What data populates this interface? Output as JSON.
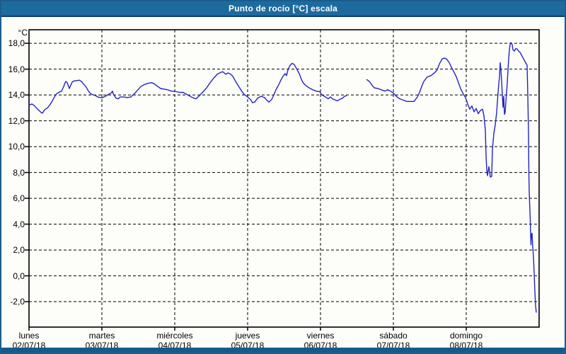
{
  "window": {
    "title": "Punto de rocío [°C] escala"
  },
  "frame": {
    "titlebar_color": "#1d6a9e",
    "titlebar_text_color": "#ffffff",
    "border_color": "#1a5e8e",
    "bottombar_color": "#17598a",
    "plot_background": "#fdfdfa"
  },
  "chart_data": {
    "type": "line",
    "title": "Punto de rocío [°C] escala",
    "unit_label": "°C",
    "line_color": "#2323c8",
    "grid": "dashed-black",
    "legend": "none",
    "x_axis": {
      "range_days": [
        0,
        7
      ],
      "days": [
        {
          "name": "lunes",
          "date": "02/07/18"
        },
        {
          "name": "martes",
          "date": "03/07/18"
        },
        {
          "name": "miércoles",
          "date": "04/07/18"
        },
        {
          "name": "jueves",
          "date": "05/07/18"
        },
        {
          "name": "viernes",
          "date": "06/07/18"
        },
        {
          "name": "sábado",
          "date": "07/07/18"
        },
        {
          "name": "domingo",
          "date": "08/07/18"
        }
      ]
    },
    "y_axis": {
      "range": [
        -3.97,
        19.05
      ],
      "ticks": [
        {
          "value": 18,
          "label": "18,0"
        },
        {
          "value": 16,
          "label": "16,0"
        },
        {
          "value": 14,
          "label": "14,0"
        },
        {
          "value": 12,
          "label": "12,0"
        },
        {
          "value": 10,
          "label": "10,0"
        },
        {
          "value": 8,
          "label": "8,0"
        },
        {
          "value": 6,
          "label": "6,0"
        },
        {
          "value": 4,
          "label": "4,0"
        },
        {
          "value": 2,
          "label": "2,0"
        },
        {
          "value": 0,
          "label": "0,0"
        },
        {
          "value": -2,
          "label": "-2,0"
        }
      ]
    },
    "series": [
      {
        "name": "Punto de rocío",
        "x_unit": "days since lunes 02/07/18 00:00",
        "segments": [
          [
            [
              0,
              13.2
            ],
            [
              0.039,
              13.3
            ],
            [
              0.068,
              13.2
            ],
            [
              0.117,
              12.9
            ],
            [
              0.165,
              12.65
            ],
            [
              0.184,
              12.6
            ],
            [
              0.214,
              12.85
            ],
            [
              0.252,
              13.0
            ],
            [
              0.282,
              13.2
            ],
            [
              0.311,
              13.45
            ],
            [
              0.35,
              13.85
            ],
            [
              0.379,
              14.1
            ],
            [
              0.408,
              14.2
            ],
            [
              0.447,
              14.3
            ],
            [
              0.476,
              14.65
            ],
            [
              0.495,
              14.95
            ],
            [
              0.505,
              15.05
            ],
            [
              0.524,
              14.95
            ],
            [
              0.544,
              14.65
            ],
            [
              0.553,
              14.5
            ],
            [
              0.573,
              14.75
            ],
            [
              0.592,
              15.0
            ],
            [
              0.621,
              15.1
            ],
            [
              0.65,
              15.1
            ],
            [
              0.689,
              15.15
            ],
            [
              0.718,
              15.05
            ],
            [
              0.748,
              14.85
            ],
            [
              0.786,
              14.6
            ],
            [
              0.816,
              14.3
            ],
            [
              0.845,
              14.1
            ],
            [
              0.883,
              14.0
            ],
            [
              0.913,
              13.95
            ],
            [
              0.942,
              13.85
            ],
            [
              0.981,
              13.8
            ],
            [
              1.01,
              13.8
            ],
            [
              1.049,
              13.9
            ],
            [
              1.078,
              14.0
            ],
            [
              1.126,
              14.15
            ],
            [
              1.146,
              14.3
            ],
            [
              1.155,
              14.1
            ],
            [
              1.194,
              13.75
            ],
            [
              1.223,
              13.7
            ],
            [
              1.252,
              13.85
            ],
            [
              1.301,
              13.85
            ],
            [
              1.35,
              13.8
            ],
            [
              1.398,
              13.85
            ],
            [
              1.447,
              14.1
            ],
            [
              1.495,
              14.4
            ],
            [
              1.534,
              14.65
            ],
            [
              1.583,
              14.8
            ],
            [
              1.631,
              14.9
            ],
            [
              1.68,
              14.95
            ],
            [
              1.709,
              14.9
            ],
            [
              1.757,
              14.7
            ],
            [
              1.806,
              14.5
            ],
            [
              1.854,
              14.45
            ],
            [
              1.903,
              14.4
            ],
            [
              1.951,
              14.3
            ],
            [
              2.0,
              14.28
            ],
            [
              2.068,
              14.2
            ],
            [
              2.117,
              14.2
            ],
            [
              2.146,
              14.1
            ],
            [
              2.194,
              13.95
            ],
            [
              2.243,
              13.8
            ],
            [
              2.291,
              13.7
            ],
            [
              2.34,
              13.95
            ],
            [
              2.388,
              14.25
            ],
            [
              2.437,
              14.55
            ],
            [
              2.485,
              14.95
            ],
            [
              2.534,
              15.3
            ],
            [
              2.583,
              15.6
            ],
            [
              2.631,
              15.75
            ],
            [
              2.66,
              15.8
            ],
            [
              2.699,
              15.6
            ],
            [
              2.728,
              15.7
            ],
            [
              2.757,
              15.65
            ],
            [
              2.796,
              15.45
            ],
            [
              2.835,
              15.05
            ],
            [
              2.874,
              14.7
            ],
            [
              2.913,
              14.35
            ],
            [
              2.951,
              14.05
            ],
            [
              3.0,
              13.85
            ],
            [
              3.039,
              13.65
            ],
            [
              3.068,
              13.4
            ],
            [
              3.097,
              13.45
            ],
            [
              3.136,
              13.75
            ],
            [
              3.184,
              13.9
            ],
            [
              3.233,
              13.8
            ],
            [
              3.262,
              13.6
            ],
            [
              3.291,
              13.45
            ],
            [
              3.33,
              13.65
            ],
            [
              3.359,
              14.0
            ],
            [
              3.388,
              14.4
            ],
            [
              3.427,
              14.8
            ],
            [
              3.456,
              15.15
            ],
            [
              3.485,
              15.45
            ],
            [
              3.515,
              15.65
            ],
            [
              3.534,
              15.5
            ],
            [
              3.553,
              15.95
            ],
            [
              3.583,
              16.3
            ],
            [
              3.612,
              16.45
            ],
            [
              3.641,
              16.35
            ],
            [
              3.67,
              16.05
            ],
            [
              3.709,
              15.65
            ],
            [
              3.738,
              15.2
            ],
            [
              3.767,
              14.9
            ],
            [
              3.806,
              14.7
            ],
            [
              3.845,
              14.55
            ],
            [
              3.893,
              14.4
            ],
            [
              3.942,
              14.3
            ],
            [
              3.99,
              14.25
            ],
            [
              4.019,
              14.0
            ],
            [
              4.068,
              13.85
            ],
            [
              4.107,
              13.7
            ],
            [
              4.136,
              13.85
            ],
            [
              4.165,
              13.7
            ],
            [
              4.204,
              13.6
            ],
            [
              4.233,
              13.55
            ],
            [
              4.262,
              13.65
            ],
            [
              4.301,
              13.75
            ],
            [
              4.33,
              13.9
            ],
            [
              4.359,
              13.95
            ]
          ],
          [
            [
              4.631,
              15.2
            ],
            [
              4.67,
              15.05
            ],
            [
              4.709,
              14.75
            ],
            [
              4.738,
              14.55
            ],
            [
              4.786,
              14.5
            ],
            [
              4.835,
              14.4
            ],
            [
              4.883,
              14.3
            ],
            [
              4.922,
              14.4
            ],
            [
              4.961,
              14.3
            ],
            [
              5.01,
              14.1
            ],
            [
              5.039,
              13.9
            ],
            [
              5.087,
              13.7
            ],
            [
              5.136,
              13.6
            ],
            [
              5.184,
              13.5
            ],
            [
              5.233,
              13.5
            ],
            [
              5.282,
              13.5
            ],
            [
              5.33,
              13.85
            ],
            [
              5.359,
              14.2
            ],
            [
              5.388,
              14.65
            ],
            [
              5.417,
              15.05
            ],
            [
              5.466,
              15.4
            ],
            [
              5.515,
              15.5
            ],
            [
              5.563,
              15.7
            ],
            [
              5.602,
              15.95
            ],
            [
              5.631,
              16.4
            ],
            [
              5.67,
              16.8
            ],
            [
              5.699,
              16.85
            ],
            [
              5.728,
              16.8
            ],
            [
              5.767,
              16.5
            ],
            [
              5.796,
              16.15
            ],
            [
              5.825,
              15.85
            ],
            [
              5.864,
              15.4
            ],
            [
              5.893,
              14.95
            ],
            [
              5.922,
              14.5
            ],
            [
              5.961,
              14.05
            ],
            [
              5.99,
              13.8
            ],
            [
              6.019,
              13.3
            ],
            [
              6.049,
              12.9
            ],
            [
              6.078,
              13.15
            ],
            [
              6.107,
              12.7
            ],
            [
              6.136,
              12.95
            ],
            [
              6.165,
              12.55
            ],
            [
              6.194,
              12.8
            ],
            [
              6.223,
              12.9
            ],
            [
              6.243,
              12.4
            ],
            [
              6.262,
              11.3
            ],
            [
              6.272,
              9.3
            ],
            [
              6.282,
              8.2
            ],
            [
              6.291,
              7.75
            ],
            [
              6.311,
              8.45
            ],
            [
              6.33,
              7.65
            ],
            [
              6.35,
              7.7
            ],
            [
              6.359,
              9.8
            ],
            [
              6.379,
              11.0
            ],
            [
              6.398,
              11.7
            ],
            [
              6.417,
              12.65
            ],
            [
              6.427,
              13.45
            ],
            [
              6.437,
              14.2
            ],
            [
              6.447,
              14.85
            ],
            [
              6.456,
              15.4
            ],
            [
              6.466,
              16.5
            ],
            [
              6.476,
              15.9
            ],
            [
              6.485,
              15.1
            ],
            [
              6.495,
              14.0
            ],
            [
              6.505,
              13.05
            ],
            [
              6.515,
              13.9
            ],
            [
              6.524,
              12.5
            ],
            [
              6.534,
              12.65
            ],
            [
              6.544,
              13.5
            ],
            [
              6.553,
              14.2
            ],
            [
              6.563,
              14.95
            ],
            [
              6.573,
              15.9
            ],
            [
              6.583,
              16.85
            ],
            [
              6.592,
              17.5
            ],
            [
              6.602,
              17.9
            ],
            [
              6.612,
              18.05
            ],
            [
              6.631,
              17.9
            ],
            [
              6.641,
              17.5
            ],
            [
              6.66,
              17.4
            ],
            [
              6.68,
              17.6
            ],
            [
              6.699,
              17.55
            ],
            [
              6.718,
              17.4
            ],
            [
              6.738,
              17.3
            ],
            [
              6.757,
              17.1
            ],
            [
              6.777,
              16.9
            ],
            [
              6.796,
              16.7
            ],
            [
              6.816,
              16.5
            ],
            [
              6.835,
              16.3
            ],
            [
              6.845,
              14.0
            ],
            [
              6.854,
              11.0
            ],
            [
              6.859,
              8.0
            ],
            [
              6.864,
              6.5
            ],
            [
              6.874,
              5.0
            ],
            [
              6.879,
              4.3
            ],
            [
              6.883,
              3.3
            ],
            [
              6.888,
              2.4
            ],
            [
              6.893,
              3.2
            ],
            [
              6.903,
              3.3
            ],
            [
              6.913,
              2.2
            ],
            [
              6.922,
              1.5
            ],
            [
              6.932,
              0.2
            ],
            [
              6.942,
              -1.2
            ],
            [
              6.951,
              -2.3
            ],
            [
              6.961,
              -2.85
            ]
          ]
        ]
      }
    ]
  }
}
